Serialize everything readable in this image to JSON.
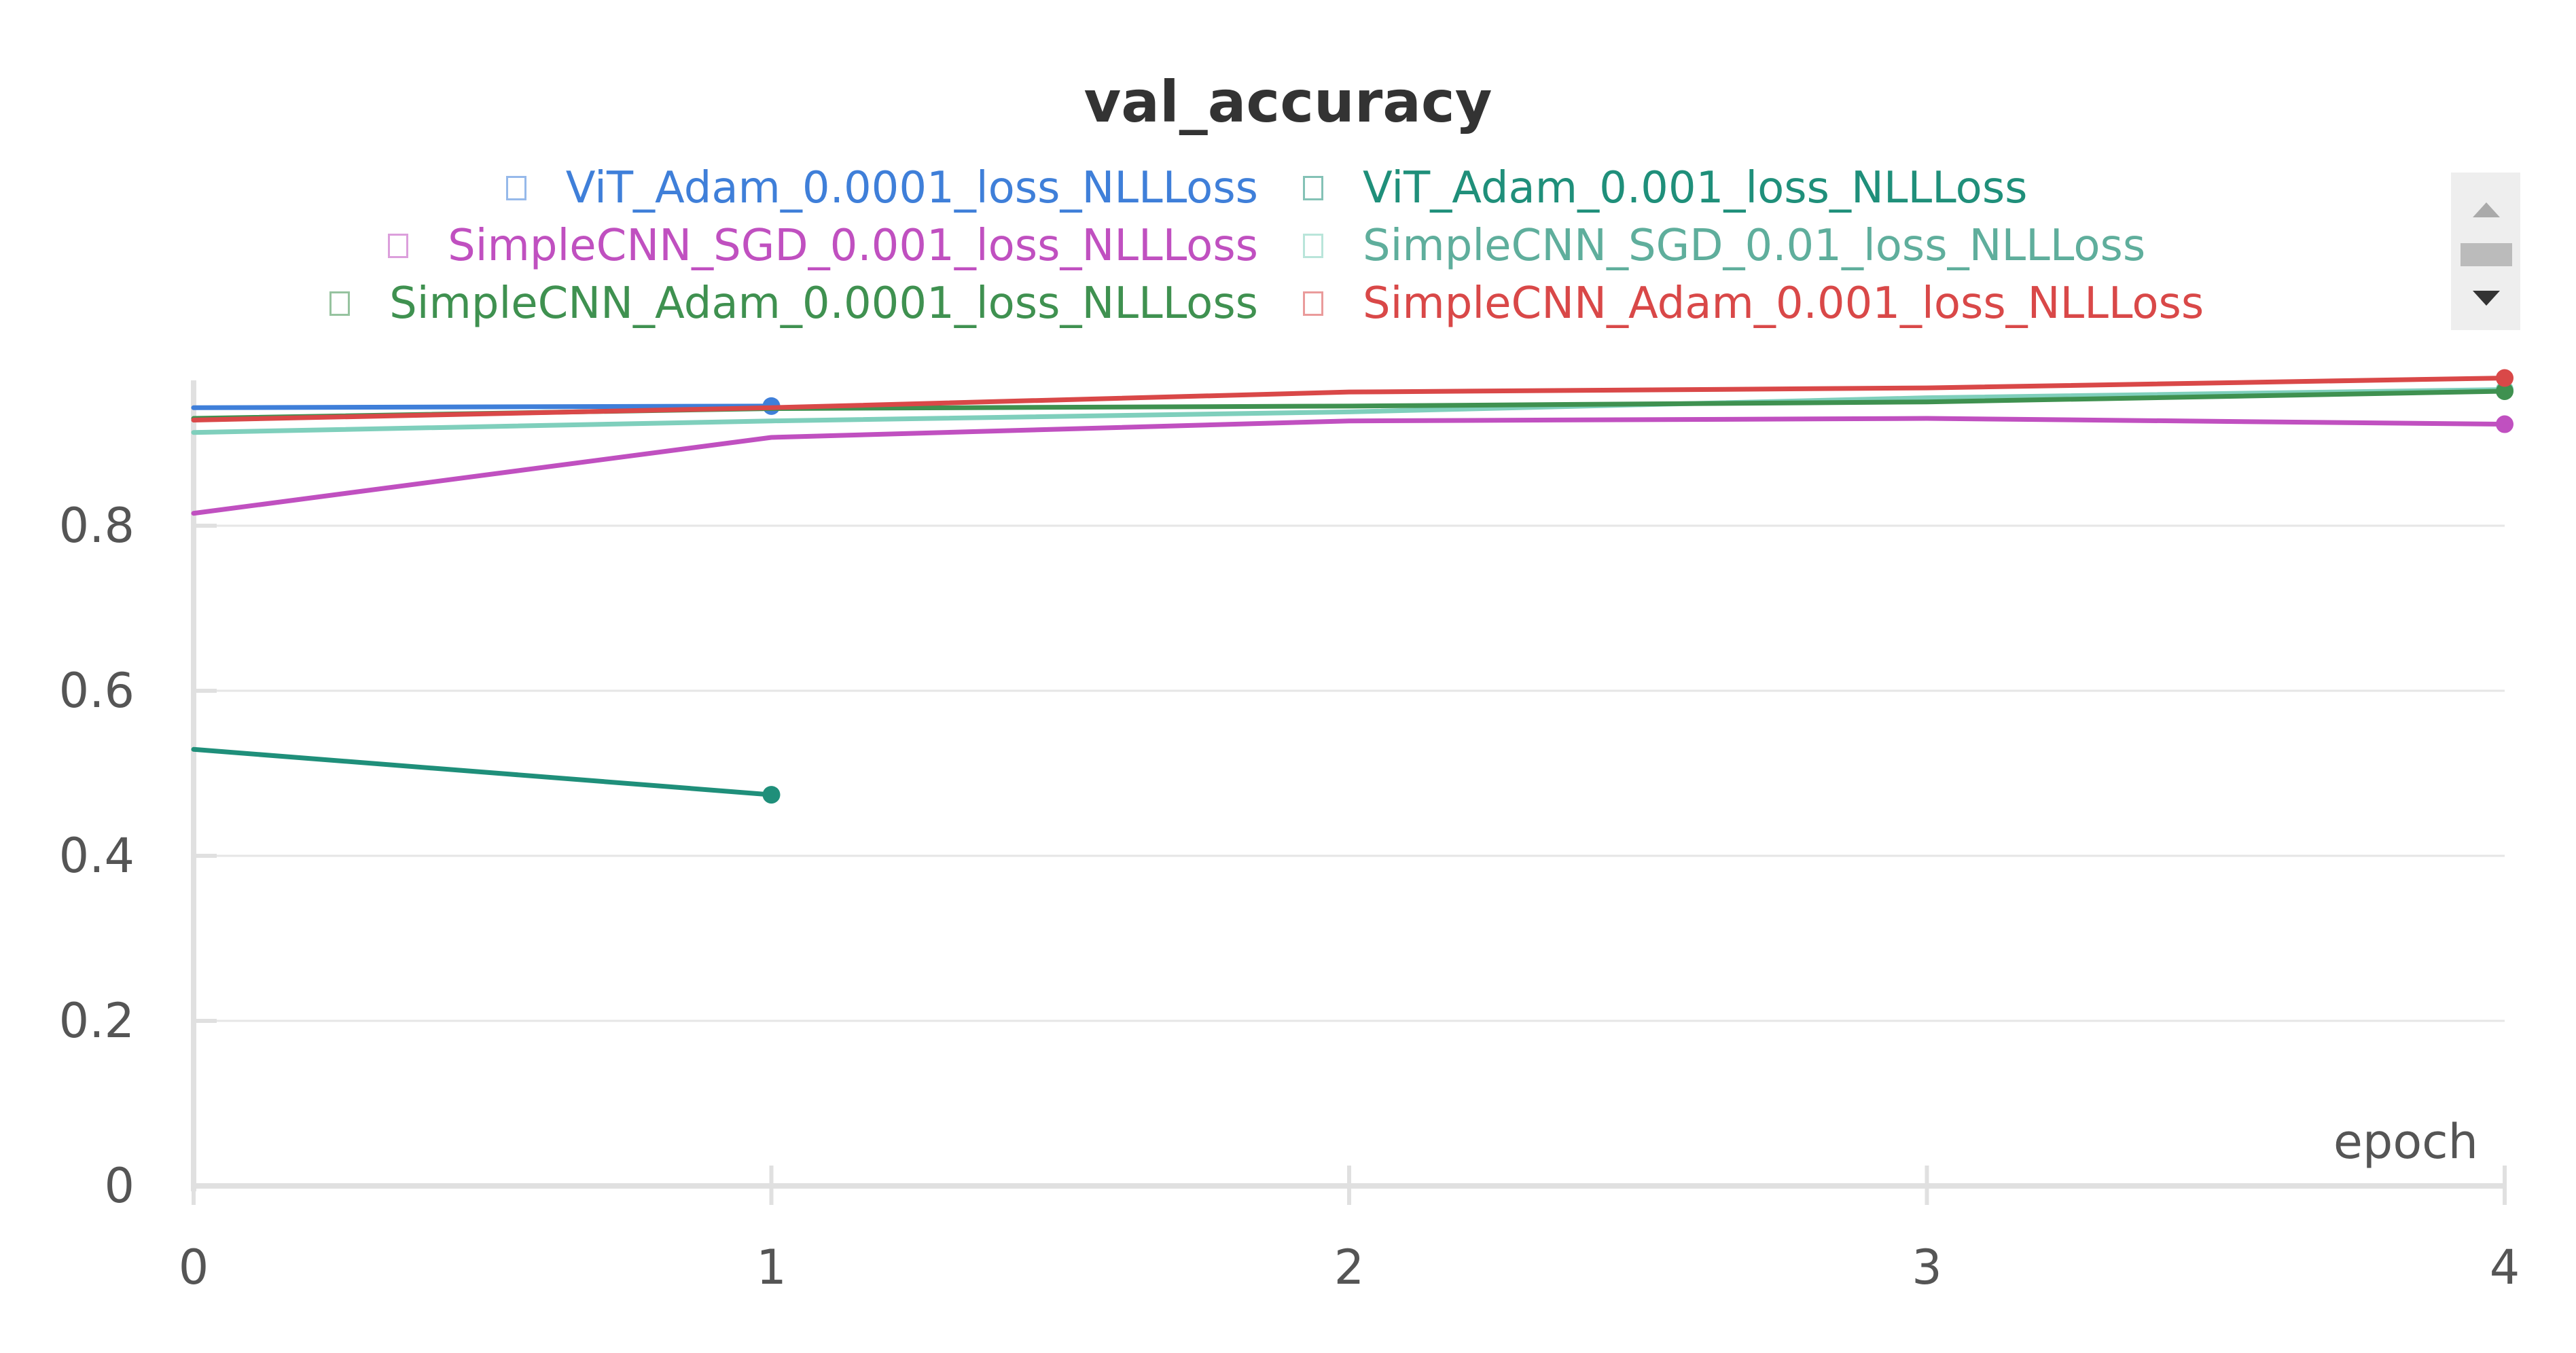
{
  "chart_data": {
    "type": "line",
    "title": "val_accuracy",
    "xlabel": "epoch",
    "ylabel": "",
    "x_ticks": [
      0,
      1,
      2,
      3,
      4
    ],
    "y_ticks": [
      0,
      0.2,
      0.4,
      0.6,
      0.8
    ],
    "y_tick_labels": [
      "0",
      "0.2",
      "0.4",
      "0.6",
      "0.8"
    ],
    "x_tick_labels": [
      "0",
      "1",
      "2",
      "3",
      "4"
    ],
    "xlim": [
      0,
      4
    ],
    "ylim": [
      0,
      0.98
    ],
    "grid": true,
    "legend_position": "top",
    "series": [
      {
        "name": "ViT_Adam_0.0001_loss_NLLLoss",
        "color": "#3f7fd9",
        "x": [
          0,
          1
        ],
        "y": [
          0.943,
          0.945
        ]
      },
      {
        "name": "ViT_Adam_0.001_loss_NLLLoss",
        "color": "#1f8f7a",
        "x": [
          0,
          1
        ],
        "y": [
          0.529,
          0.474
        ]
      },
      {
        "name": "SimpleCNN_SGD_0.001_loss_NLLLoss",
        "color": "#c050c0",
        "x": [
          0,
          1,
          2,
          3,
          4
        ],
        "y": [
          0.815,
          0.907,
          0.927,
          0.93,
          0.923
        ]
      },
      {
        "name": "SimpleCNN_SGD_0.01_loss_NLLLoss",
        "color": "#7fcfbc",
        "x": [
          0,
          1,
          2,
          3,
          4
        ],
        "y": [
          0.913,
          0.927,
          0.938,
          0.955,
          0.965
        ]
      },
      {
        "name": "SimpleCNN_Adam_0.0001_loss_NLLLoss",
        "color": "#3f9150",
        "x": [
          0,
          1,
          2,
          3,
          4
        ],
        "y": [
          0.93,
          0.942,
          0.945,
          0.95,
          0.963
        ]
      },
      {
        "name": "SimpleCNN_Adam_0.001_loss_NLLLoss",
        "color": "#d94848",
        "x": [
          0,
          1,
          2,
          3,
          4
        ],
        "y": [
          0.928,
          0.943,
          0.962,
          0.967,
          0.979
        ]
      }
    ]
  }
}
